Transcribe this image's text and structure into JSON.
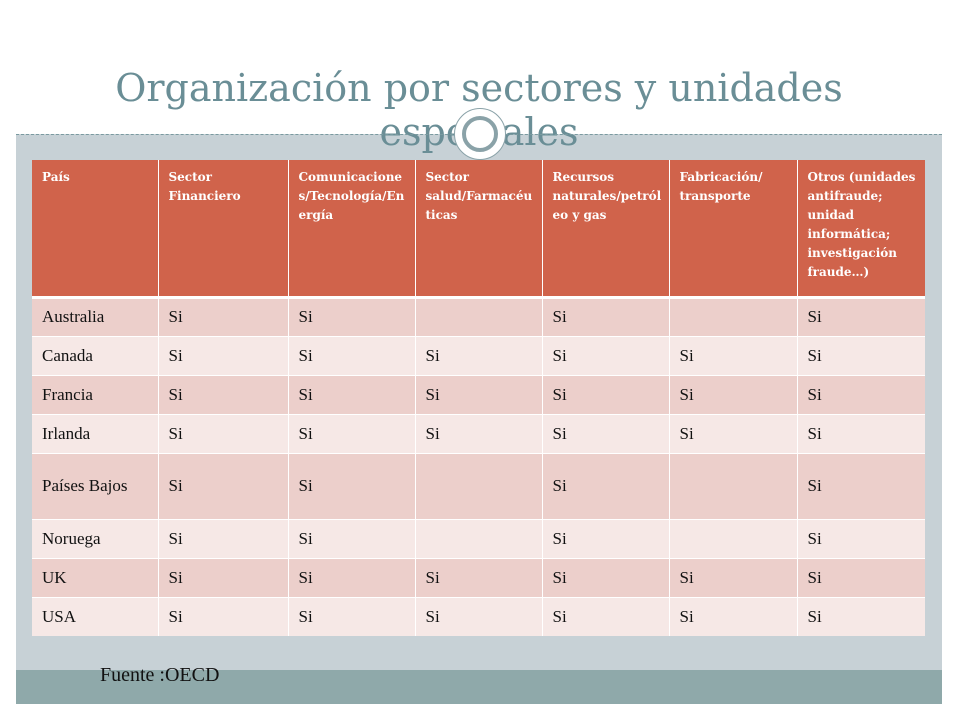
{
  "slide": {
    "title": "Organización por sectores y unidades especiales",
    "source_note": "Fuente :OECD"
  },
  "table": {
    "headers": [
      "País",
      "Sector Financiero",
      "Comunicaciones/Tecnología/Energía",
      "Sector salud/Farmacéuticas",
      "Recursos naturales/petróleo y gas",
      "Fabricación/ transporte",
      "Otros (unidades antifraude; unidad informática; investigación fraude…)"
    ],
    "rows": [
      [
        "Australia",
        "Si",
        "Si",
        "",
        "Si",
        "",
        "Si"
      ],
      [
        "Canada",
        "Si",
        "Si",
        "Si",
        "Si",
        "Si",
        "Si"
      ],
      [
        "Francia",
        "Si",
        "Si",
        "Si",
        "Si",
        "Si",
        "Si"
      ],
      [
        "Irlanda",
        "Si",
        "Si",
        "Si",
        "Si",
        "Si",
        "Si"
      ],
      [
        "Países Bajos",
        "Si",
        "Si",
        "",
        "Si",
        "",
        "Si"
      ],
      [
        "Noruega",
        "Si",
        "Si",
        "",
        "Si",
        "",
        "Si"
      ],
      [
        "UK",
        "Si",
        "Si",
        "Si",
        "Si",
        "Si",
        "Si"
      ],
      [
        "USA",
        "Si",
        "Si",
        "Si",
        "Si",
        "Si",
        "Si"
      ]
    ]
  },
  "colors": {
    "header_bg": "#d0634b",
    "row_odd": "#eccfcb",
    "row_even": "#f6e8e6",
    "title_text": "#6a8e96",
    "content_bg": "#c7d1d6",
    "footer_band": "#8fa9aa"
  }
}
